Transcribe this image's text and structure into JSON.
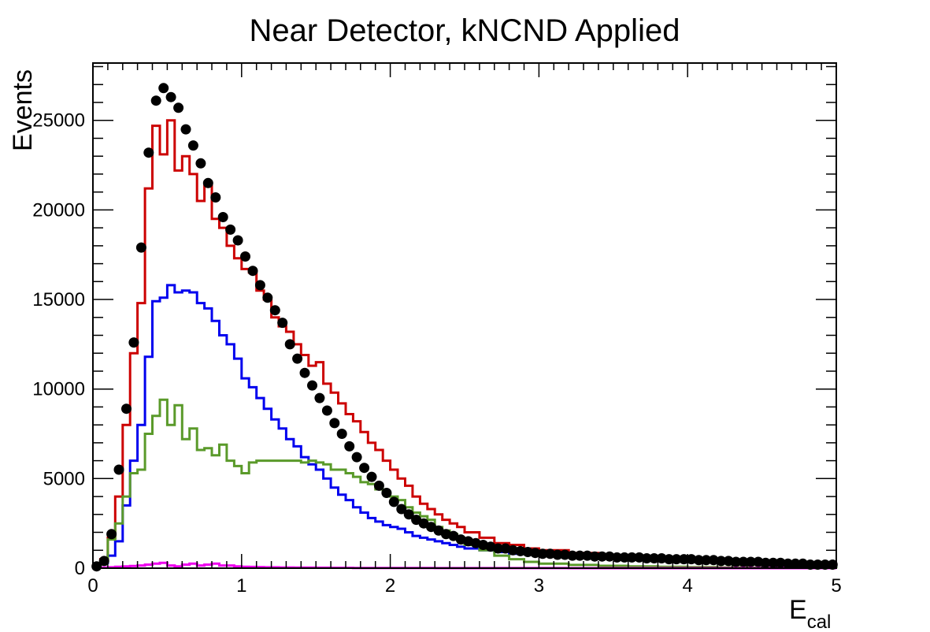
{
  "chart_data": {
    "type": "line",
    "title": "Near Detector, kNCND Applied",
    "xlabel_main": "E",
    "xlabel_sub": "cal",
    "ylabel": "Events",
    "xlim": [
      0,
      5
    ],
    "ylim": [
      0,
      28200
    ],
    "xticks": [
      0,
      1,
      2,
      3,
      4,
      5
    ],
    "xtick_labels": [
      "0",
      "1",
      "2",
      "3",
      "4",
      "5"
    ],
    "yticks": [
      0,
      5000,
      10000,
      15000,
      20000,
      25000
    ],
    "ytick_labels": [
      "0",
      "5000",
      "10000",
      "15000",
      "20000",
      "25000"
    ],
    "grid": false,
    "bin_edges": [
      0,
      0.05,
      0.1,
      0.15,
      0.2,
      0.25,
      0.3,
      0.35,
      0.4,
      0.45,
      0.5,
      0.55,
      0.6,
      0.65,
      0.7,
      0.75,
      0.8,
      0.85,
      0.9,
      0.95,
      1.0,
      1.05,
      1.1,
      1.15,
      1.2,
      1.25,
      1.3,
      1.35,
      1.4,
      1.45,
      1.5,
      1.55,
      1.6,
      1.65,
      1.7,
      1.75,
      1.8,
      1.85,
      1.9,
      1.95,
      2.0,
      2.05,
      2.1,
      2.15,
      2.2,
      2.25,
      2.3,
      2.35,
      2.4,
      2.45,
      2.5,
      2.6,
      2.7,
      2.8,
      2.9,
      3.0,
      3.2,
      3.4,
      3.6,
      3.8,
      4.0,
      4.2,
      4.4,
      4.6,
      4.8,
      5.0
    ],
    "series": [
      {
        "style": "histogram",
        "color": "#cc0000",
        "values": [
          150,
          500,
          1700,
          4000,
          8000,
          12000,
          14800,
          21200,
          24700,
          23100,
          25000,
          22200,
          23000,
          22000,
          20500,
          21500,
          19500,
          19000,
          18000,
          17300,
          16700,
          16500,
          15500,
          15000,
          14000,
          13500,
          13200,
          12500,
          11900,
          11300,
          11500,
          10300,
          9800,
          9200,
          8600,
          8200,
          7600,
          7000,
          6600,
          6000,
          5500,
          5000,
          4600,
          4000,
          3600,
          3300,
          3000,
          2700,
          2500,
          2300,
          2000,
          1700,
          1400,
          1300,
          1100,
          1000,
          850,
          700,
          650,
          600,
          550,
          450,
          350,
          300,
          200
        ]
      },
      {
        "style": "histogram",
        "color": "#0000ee",
        "values": [
          100,
          300,
          700,
          1500,
          3500,
          6000,
          8000,
          11800,
          14900,
          15100,
          15800,
          15400,
          15500,
          15400,
          14800,
          14500,
          13800,
          13000,
          12500,
          11700,
          10600,
          10100,
          9500,
          8900,
          8300,
          7800,
          7200,
          6800,
          6200,
          5800,
          5500,
          5000,
          4500,
          4100,
          3800,
          3400,
          3100,
          2800,
          2600,
          2400,
          2300,
          2200,
          2000,
          1800,
          1700,
          1600,
          1500,
          1400,
          1300,
          1200,
          1100,
          1000,
          900,
          800,
          800,
          750,
          650,
          600,
          550,
          500,
          450,
          400,
          320,
          250,
          180
        ]
      },
      {
        "style": "histogram",
        "color": "#5a9a2a",
        "values": [
          120,
          400,
          1600,
          2500,
          4000,
          5300,
          5500,
          7500,
          8500,
          9400,
          8000,
          9100,
          7200,
          7800,
          6600,
          6700,
          6300,
          6900,
          6000,
          5700,
          5300,
          5900,
          6000,
          6000,
          6000,
          6000,
          6000,
          6000,
          5900,
          6000,
          5900,
          5800,
          5500,
          5500,
          5300,
          5100,
          4800,
          4700,
          4400,
          4200,
          4000,
          3800,
          3400,
          3100,
          2900,
          2700,
          2300,
          2100,
          1900,
          1600,
          1300,
          1000,
          700,
          500,
          350,
          250,
          180,
          130,
          100,
          80,
          60,
          45,
          30,
          20,
          15
        ]
      },
      {
        "style": "histogram",
        "color": "#ee00ee",
        "values": [
          20,
          30,
          50,
          80,
          100,
          120,
          150,
          200,
          250,
          300,
          150,
          100,
          200,
          250,
          150,
          200,
          250,
          150,
          150,
          100,
          80,
          70,
          60,
          50,
          50,
          40,
          40,
          35,
          30,
          30,
          25,
          25,
          20,
          20,
          20,
          15,
          15,
          15,
          12,
          12,
          10,
          10,
          10,
          8,
          8,
          8,
          6,
          6,
          5,
          5,
          5,
          4,
          4,
          3,
          3,
          3,
          2,
          2,
          2,
          2,
          1,
          1,
          1,
          1,
          1
        ]
      }
    ],
    "markers": {
      "style": "scatter",
      "color": "#000000",
      "x": [
        0.025,
        0.075,
        0.125,
        0.175,
        0.225,
        0.275,
        0.325,
        0.375,
        0.425,
        0.475,
        0.525,
        0.575,
        0.625,
        0.675,
        0.725,
        0.775,
        0.825,
        0.875,
        0.925,
        0.975,
        1.025,
        1.075,
        1.125,
        1.175,
        1.225,
        1.275,
        1.325,
        1.375,
        1.425,
        1.475,
        1.525,
        1.575,
        1.625,
        1.675,
        1.725,
        1.775,
        1.825,
        1.875,
        1.925,
        1.975,
        2.025,
        2.075,
        2.125,
        2.175,
        2.225,
        2.275,
        2.325,
        2.375,
        2.425,
        2.475,
        2.525,
        2.575,
        2.625,
        2.675,
        2.725,
        2.775,
        2.825,
        2.875,
        2.925,
        2.975,
        3.025,
        3.075,
        3.125,
        3.175,
        3.225,
        3.275,
        3.325,
        3.375,
        3.425,
        3.475,
        3.525,
        3.575,
        3.625,
        3.675,
        3.725,
        3.775,
        3.825,
        3.875,
        3.925,
        3.975,
        4.025,
        4.075,
        4.125,
        4.175,
        4.225,
        4.275,
        4.325,
        4.375,
        4.425,
        4.475,
        4.525,
        4.575,
        4.625,
        4.675,
        4.725,
        4.775,
        4.825,
        4.875,
        4.925,
        4.975
      ],
      "y": [
        100,
        400,
        1900,
        5500,
        8900,
        12600,
        17900,
        23200,
        26100,
        26800,
        26300,
        25700,
        24500,
        23600,
        22600,
        21500,
        20700,
        19600,
        18900,
        18300,
        17400,
        16600,
        15800,
        15100,
        14400,
        13700,
        12500,
        11700,
        10900,
        10200,
        9500,
        8800,
        8100,
        7500,
        6800,
        6200,
        5600,
        5100,
        4600,
        4200,
        3700,
        3300,
        3000,
        2700,
        2500,
        2300,
        2100,
        1900,
        1800,
        1600,
        1500,
        1400,
        1300,
        1200,
        1100,
        1100,
        1000,
        950,
        900,
        850,
        800,
        800,
        750,
        750,
        700,
        700,
        700,
        650,
        650,
        650,
        600,
        600,
        600,
        600,
        550,
        550,
        550,
        500,
        500,
        500,
        500,
        450,
        450,
        450,
        400,
        400,
        350,
        350,
        350,
        350,
        300,
        300,
        300,
        250,
        250,
        250,
        200,
        200,
        200,
        200
      ]
    }
  }
}
